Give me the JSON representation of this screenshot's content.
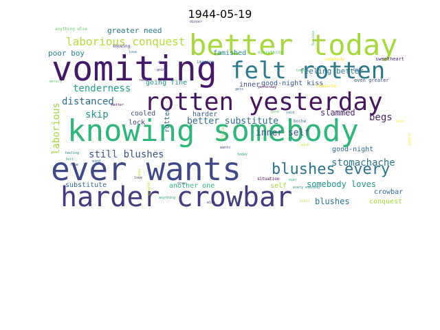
{
  "figure": {
    "title": "1944-05-19"
  },
  "chart_data": {
    "type": "wordcloud",
    "title": "1944-05-19",
    "words": [
      {
        "text": "vomiting",
        "weight": 1.0,
        "color": "#46186a"
      },
      {
        "text": "knowing somebody",
        "weight": 0.98,
        "color": "#30b57a"
      },
      {
        "text": "better today",
        "weight": 0.92,
        "color": "#a7d83f"
      },
      {
        "text": "ever wants",
        "weight": 0.95,
        "color": "#3f4889"
      },
      {
        "text": "harder crowbar",
        "weight": 0.9,
        "color": "#433c82"
      },
      {
        "text": "rotten yesterday",
        "weight": 0.88,
        "color": "#471461"
      },
      {
        "text": "felt rotten",
        "weight": 0.82,
        "color": "#2b788e"
      },
      {
        "text": "blushes every",
        "weight": 0.5,
        "color": "#2c728e"
      },
      {
        "text": "laborious conquest",
        "weight": 0.4,
        "color": "#b4dc36"
      },
      {
        "text": "tenderness",
        "weight": 0.36,
        "color": "#1f9e89"
      },
      {
        "text": "distanced",
        "weight": 0.36,
        "color": "#2b6f8f"
      },
      {
        "text": "skip",
        "weight": 0.34,
        "color": "#21918c"
      },
      {
        "text": "still blushes",
        "weight": 0.34,
        "color": "#3b528b"
      },
      {
        "text": "stomachache",
        "weight": 0.34,
        "color": "#2a788e"
      },
      {
        "text": "laborious",
        "weight": 0.34,
        "color": "#9dd93b"
      },
      {
        "text": "begs",
        "weight": 0.33,
        "color": "#48226a"
      },
      {
        "text": "better substitute",
        "weight": 0.32,
        "color": "#2f6c8e"
      },
      {
        "text": "inner self",
        "weight": 0.3,
        "color": "#3b518a"
      },
      {
        "text": "somebody loves",
        "weight": 0.28,
        "color": "#1f958b"
      },
      {
        "text": "blushes",
        "weight": 0.28,
        "color": "#29788e"
      },
      {
        "text": "slammed",
        "weight": 0.28,
        "color": "#482677"
      },
      {
        "text": "feeling better",
        "weight": 0.28,
        "color": "#2c728e"
      },
      {
        "text": "greater need",
        "weight": 0.26,
        "color": "#2a7b8e"
      },
      {
        "text": "poor boy",
        "weight": 0.26,
        "color": "#25848e"
      },
      {
        "text": "famished",
        "weight": 0.26,
        "color": "#23898e"
      },
      {
        "text": "going fine",
        "weight": 0.26,
        "color": "#20928c"
      },
      {
        "text": "good-night kiss",
        "weight": 0.26,
        "color": "#39558c"
      },
      {
        "text": "good-night",
        "weight": 0.26,
        "color": "#2f6b8e"
      },
      {
        "text": "cooled",
        "weight": 0.26,
        "color": "#3d4e8a"
      },
      {
        "text": "harder",
        "weight": 0.25,
        "color": "#38598c"
      },
      {
        "text": "lock",
        "weight": 0.25,
        "color": "#414487"
      },
      {
        "text": "substitute",
        "weight": 0.24,
        "color": "#31688e"
      },
      {
        "text": "another one",
        "weight": 0.24,
        "color": "#2db27d"
      },
      {
        "text": "self",
        "weight": 0.24,
        "color": "#a0da39"
      },
      {
        "text": "crowbar",
        "weight": 0.22,
        "color": "#31688e"
      },
      {
        "text": "conquest",
        "weight": 0.22,
        "color": "#a5db36"
      },
      {
        "text": "inner",
        "weight": 0.22,
        "color": "#3e4989"
      },
      {
        "text": "rotten",
        "weight": 0.2,
        "color": "#31678e"
      },
      {
        "text": "even greater",
        "weight": 0.16,
        "color": "#39568c"
      },
      {
        "text": "sweetheart",
        "weight": 0.16,
        "color": "#482475"
      },
      {
        "text": "somebody",
        "weight": 0.14,
        "color": "#fde725"
      },
      {
        "text": "imagine",
        "weight": 0.12,
        "color": "#2d708e"
      },
      {
        "text": "knowing",
        "weight": 0.12,
        "color": "#472f7d"
      },
      {
        "text": "anything else",
        "weight": 0.12,
        "color": "#5ec962"
      },
      {
        "text": "everything",
        "weight": 0.12,
        "color": "#5ec962"
      },
      {
        "text": "headache",
        "weight": 0.12,
        "color": "#fde725"
      },
      {
        "text": "force",
        "weight": 0.12,
        "color": "#9fda3a"
      },
      {
        "text": "boche",
        "weight": 0.11,
        "color": "#31688e"
      },
      {
        "text": "situation",
        "weight": 0.11,
        "color": "#440154"
      },
      {
        "text": "every evening",
        "weight": 0.1,
        "color": "#21918c"
      },
      {
        "text": "dinner",
        "weight": 0.1,
        "color": "#3e4a89"
      },
      {
        "text": "yesterday",
        "weight": 0.1,
        "color": "#440154"
      },
      {
        "text": "merely",
        "weight": 0.1,
        "color": "#5ec962"
      },
      {
        "text": "feeling",
        "weight": 0.1,
        "color": "#26828e"
      },
      {
        "text": "felt",
        "weight": 0.1,
        "color": "#22a884"
      },
      {
        "text": "happy",
        "weight": 0.1,
        "color": "#c2df23"
      },
      {
        "text": "love",
        "weight": 0.1,
        "color": "#443983"
      },
      {
        "text": "anything",
        "weight": 0.1,
        "color": "#1f9e89"
      },
      {
        "text": "else",
        "weight": 0.1,
        "color": "#482475"
      },
      {
        "text": "wants",
        "weight": 0.1,
        "color": "#443983"
      },
      {
        "text": "today",
        "weight": 0.1,
        "color": "#1f9e89"
      },
      {
        "text": "boy",
        "weight": 0.1,
        "color": "#31688e"
      },
      {
        "text": "need",
        "weight": 0.09,
        "color": "#3e4989"
      },
      {
        "text": "gets",
        "weight": 0.09,
        "color": "#31688e"
      },
      {
        "text": "better",
        "weight": 0.09,
        "color": "#440154"
      },
      {
        "text": "mind",
        "weight": 0.09,
        "color": "#2a788e"
      },
      {
        "text": "greater",
        "weight": 0.09,
        "color": "#c2df23"
      },
      {
        "text": "going",
        "weight": 0.09,
        "color": "#472d7b"
      },
      {
        "text": "kiss",
        "weight": 0.09,
        "color": "#fde725"
      },
      {
        "text": "ever",
        "weight": 0.09,
        "color": "#35b779"
      },
      {
        "text": "evening",
        "weight": 0.09,
        "color": "#5ec962"
      },
      {
        "text": "still",
        "weight": 0.09,
        "color": "#c2df23"
      },
      {
        "text": "fine",
        "weight": 0.09,
        "color": "#3e4989"
      },
      {
        "text": "lose",
        "weight": 0.09,
        "color": "#31688e"
      },
      {
        "text": "door",
        "weight": 0.09,
        "color": "#482878"
      },
      {
        "text": "people",
        "weight": 0.09,
        "color": "#fde725"
      },
      {
        "text": "loves",
        "weight": 0.09,
        "color": "#5ec962"
      },
      {
        "text": "draw",
        "weight": 0.09,
        "color": "#31688e"
      },
      {
        "text": "gone",
        "weight": 0.09,
        "color": "#5ec962"
      },
      {
        "text": "wish",
        "weight": 0.09,
        "color": "#c2df23"
      },
      {
        "text": "said",
        "weight": 0.09,
        "color": "#2a788e"
      }
    ]
  }
}
